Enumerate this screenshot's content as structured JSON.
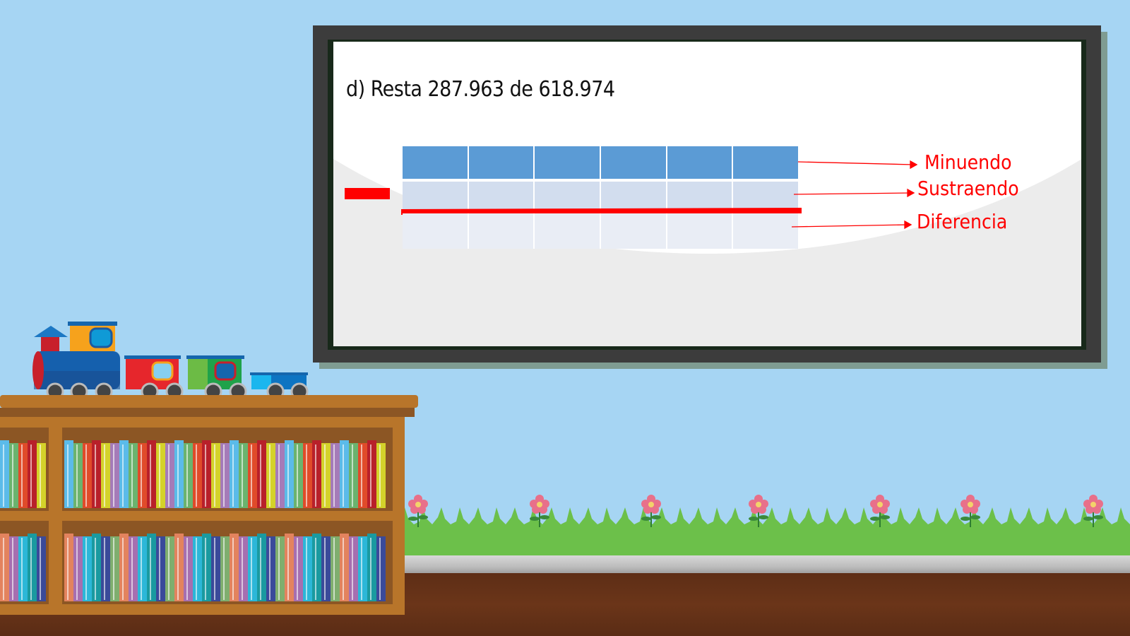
{
  "slide": {
    "title": "d) Resta 287.963 de 618.974",
    "table_columns": 6,
    "labels": {
      "minuend": "Minuendo",
      "subtrahend": "Sustraendo",
      "difference": "Diferencia"
    }
  },
  "colors": {
    "sky": "#a6d5f3",
    "accent_red": "#ff0000",
    "minuend_row": "#5b9bd5",
    "subtrahend_row": "#d2ddee",
    "difference_row": "#e9edf5",
    "board_frame": "#3c3c3c"
  }
}
